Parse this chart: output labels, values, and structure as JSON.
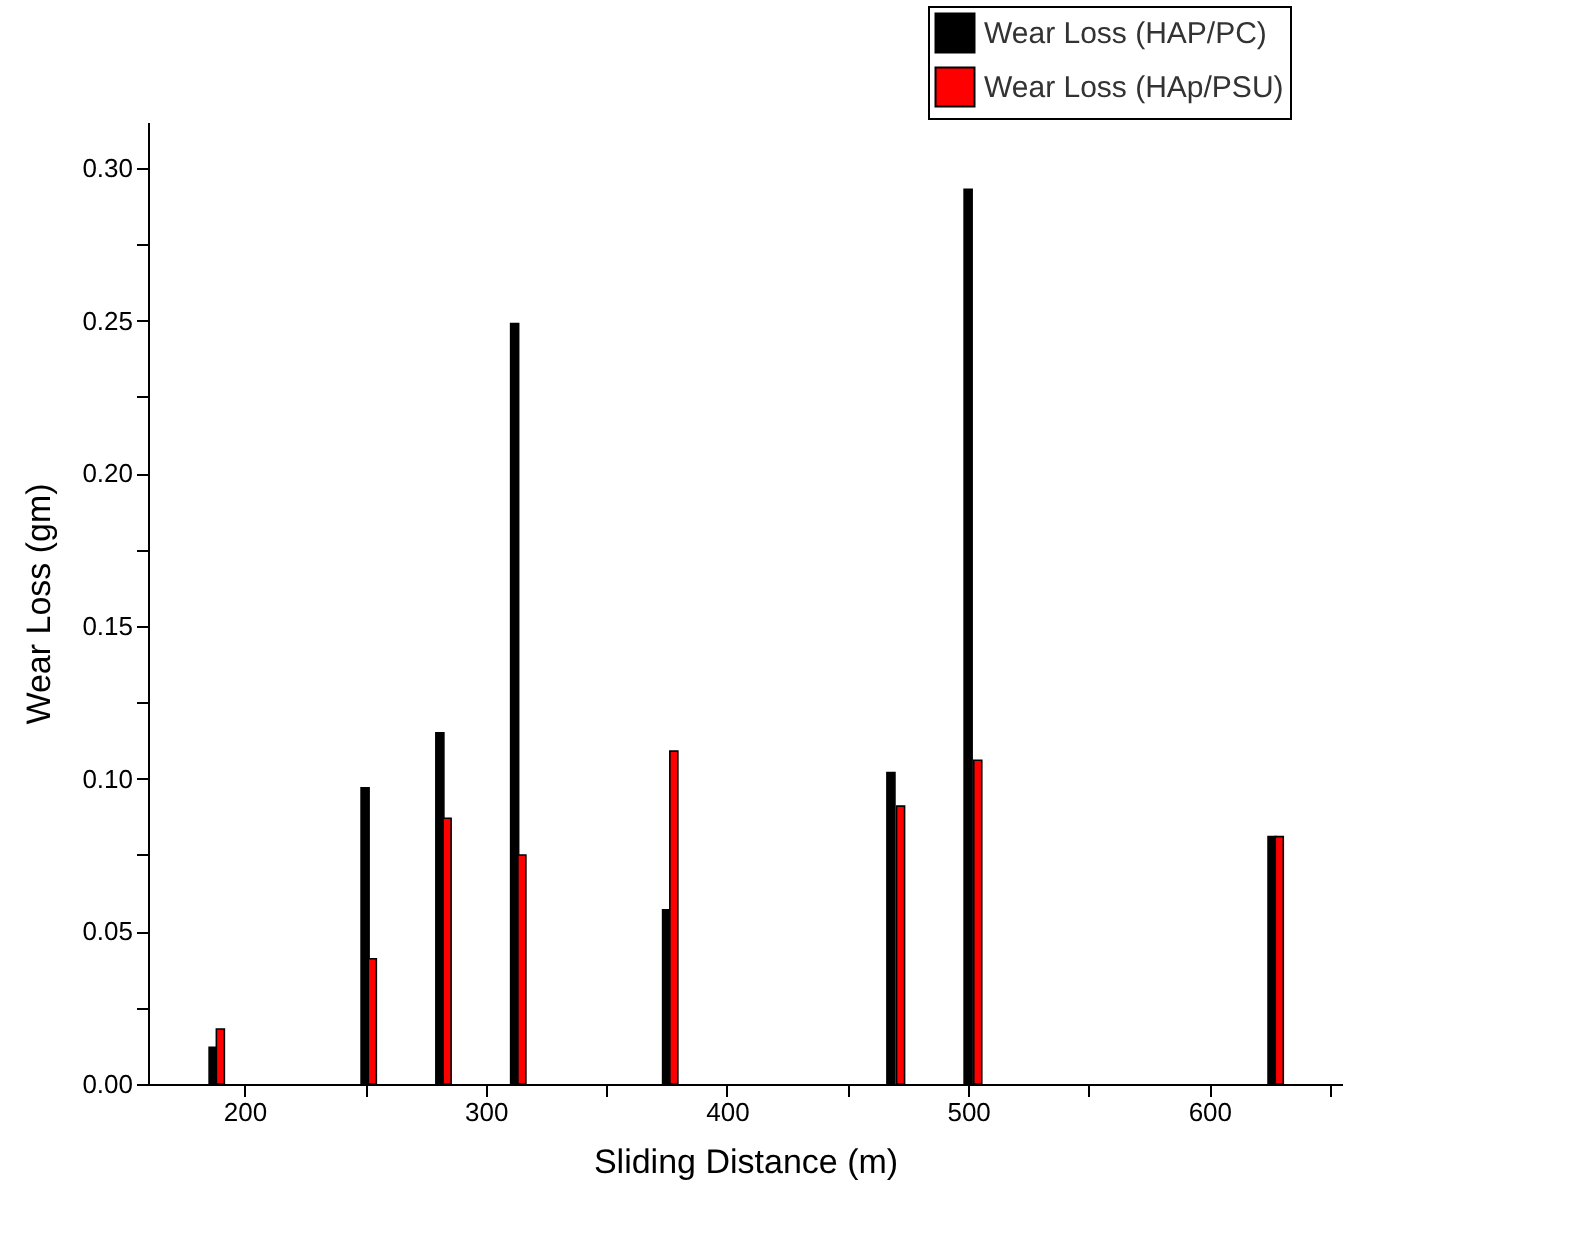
{
  "chart_data": {
    "type": "bar",
    "xlabel": "Sliding Distance (m)",
    "ylabel": "Wear Loss (gm)",
    "series": [
      {
        "name": "Wear Loss (HAP/PC)",
        "color": "#000000",
        "x": [
          187,
          250,
          281,
          312,
          375,
          468,
          500,
          626
        ],
        "values": [
          0.012,
          0.097,
          0.115,
          0.249,
          0.057,
          0.102,
          0.293,
          0.081
        ]
      },
      {
        "name": "Wear Loss (HAp/PSU)",
        "color": "#ff0000",
        "x": [
          190,
          253,
          284,
          315,
          378,
          472,
          504,
          629
        ],
        "values": [
          0.018,
          0.041,
          0.087,
          0.075,
          0.109,
          0.091,
          0.106,
          0.081
        ]
      }
    ],
    "xlim": [
      160,
      655
    ],
    "xticks": [
      200,
      {
        "value": 250,
        "label": null
      },
      300,
      {
        "value": 350,
        "label": null
      },
      400,
      {
        "value": 450,
        "label": null
      },
      500,
      {
        "value": 550,
        "label": null
      },
      600,
      {
        "value": 650,
        "label": null
      }
    ],
    "ylim": [
      0,
      0.315
    ],
    "yticks": [
      {
        "value": 0,
        "label": "0.00"
      },
      {
        "value": 0.025,
        "label": null
      },
      {
        "value": 0.05,
        "label": "0.05"
      },
      {
        "value": 0.075,
        "label": null
      },
      {
        "value": 0.1,
        "label": "0.10"
      },
      {
        "value": 0.125,
        "label": null
      },
      {
        "value": 0.15,
        "label": "0.15"
      },
      {
        "value": 0.175,
        "label": null
      },
      {
        "value": 0.2,
        "label": "0.20"
      },
      {
        "value": 0.225,
        "label": null
      },
      {
        "value": 0.25,
        "label": "0.25"
      },
      {
        "value": 0.275,
        "label": null
      },
      {
        "value": 0.3,
        "label": "0.30"
      }
    ],
    "grid": false,
    "legend": "top right"
  }
}
